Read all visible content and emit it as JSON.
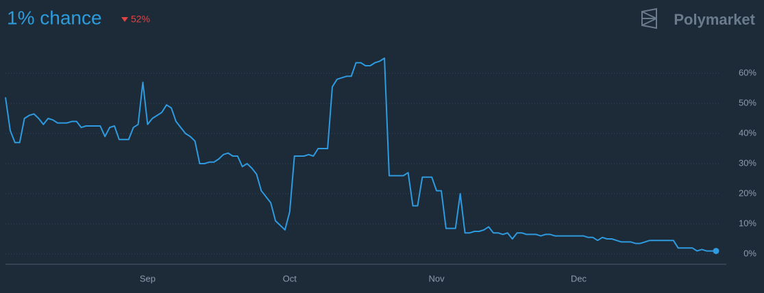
{
  "chart_data": {
    "type": "line",
    "title": "1% chance",
    "change": "52%",
    "brand": "Polymarket",
    "color": "#2e9be0",
    "change_color": "#e04444",
    "grid": true,
    "xlim": [
      0,
      150
    ],
    "xticks": [
      {
        "value": 30,
        "label": "Sep"
      },
      {
        "value": 60,
        "label": "Oct"
      },
      {
        "value": 91,
        "label": "Nov"
      },
      {
        "value": 121,
        "label": "Dec"
      }
    ],
    "ylim": [
      0,
      60
    ],
    "yticks": [
      {
        "value": 0,
        "label": "0%"
      },
      {
        "value": 10,
        "label": "10%"
      },
      {
        "value": 20,
        "label": "20%"
      },
      {
        "value": 30,
        "label": "30%"
      },
      {
        "value": 40,
        "label": "40%"
      },
      {
        "value": 50,
        "label": "50%"
      },
      {
        "value": 60,
        "label": "60%"
      }
    ],
    "values": [
      52,
      41,
      37,
      37,
      45,
      46,
      46.5,
      45,
      43,
      45,
      44.5,
      43.5,
      43.5,
      43.5,
      44,
      44,
      42,
      42.5,
      42.5,
      42.5,
      42.5,
      39,
      42,
      42.5,
      38,
      38,
      38,
      42,
      43,
      57,
      43,
      45,
      46,
      47,
      49.5,
      48.5,
      44,
      42,
      40,
      39,
      37.5,
      30,
      30,
      30.5,
      30.5,
      31.5,
      33,
      33.5,
      32.5,
      32.5,
      29,
      30,
      28.5,
      26.5,
      21,
      19,
      17,
      11,
      9.5,
      8,
      14,
      32.5,
      32.5,
      32.5,
      33,
      32.5,
      35,
      35,
      35,
      55.5,
      58,
      58.5,
      59,
      59,
      63.5,
      63.5,
      62.5,
      62.5,
      63.5,
      64,
      65,
      26,
      26,
      26,
      26,
      27,
      16,
      16,
      25.5,
      25.5,
      25.5,
      21,
      21,
      8.5,
      8.5,
      8.5,
      20,
      7,
      7,
      7.5,
      7.5,
      8,
      9,
      7,
      7,
      6.5,
      7,
      5,
      7,
      7,
      6.5,
      6.5,
      6.5,
      6,
      6.5,
      6.5,
      6,
      6,
      6,
      6,
      6,
      6,
      6,
      5.5,
      5.5,
      4.5,
      5.5,
      5,
      5,
      4.5,
      4,
      4,
      4,
      3.5,
      3.5,
      4,
      4.5,
      4.5,
      4.5,
      4.5,
      4.5,
      4.5,
      2,
      2,
      2,
      2,
      1,
      1.5,
      1,
      1,
      1
    ]
  }
}
